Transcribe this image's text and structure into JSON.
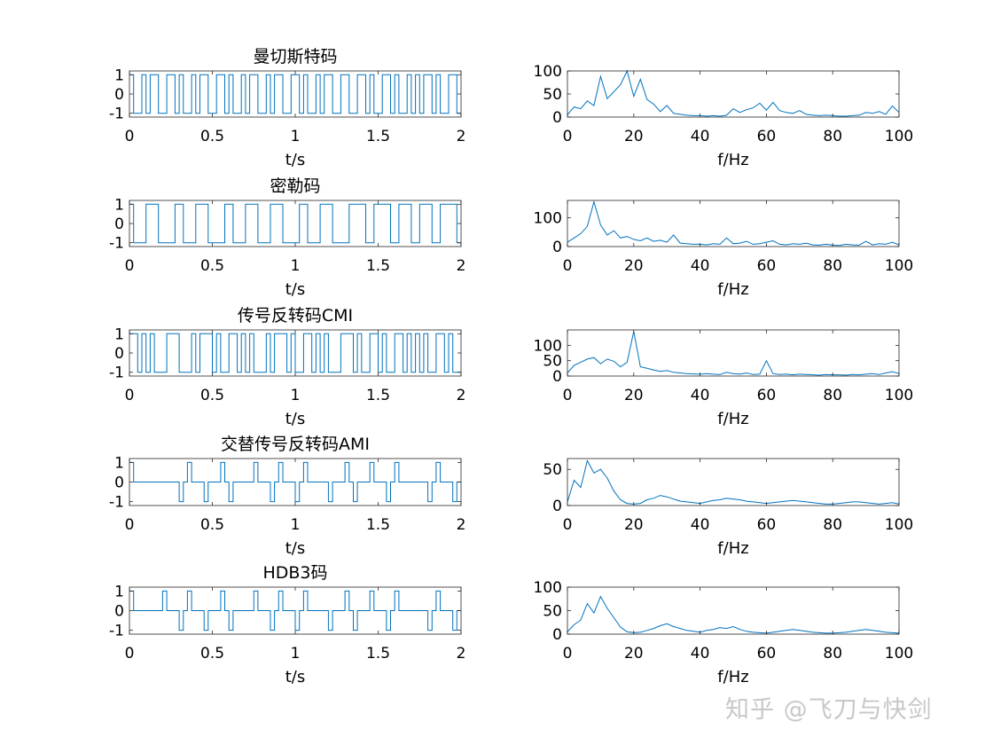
{
  "watermark": "知乎 @飞刀与快剑",
  "colors": {
    "line": "#0072BD",
    "axis": "#262626",
    "text": "#000000"
  },
  "chart_data": [
    {
      "type": "line",
      "title": "曼切斯特码",
      "xlabel": "t/s",
      "ylabel": "",
      "xlim": [
        0,
        2
      ],
      "ylim": [
        -1.2,
        1.2
      ],
      "xticks": [
        0,
        0.5,
        1,
        1.5,
        2
      ],
      "xticklabels": [
        "0",
        "0.5",
        "1",
        "1.5",
        "2"
      ],
      "yticks": [
        -1,
        0,
        1
      ],
      "yticklabels": [
        "-1",
        "0",
        "1"
      ],
      "coding": "manchester",
      "bits": [
        1,
        0,
        0,
        1,
        0,
        1,
        1,
        0,
        0,
        1,
        0,
        1,
        1,
        0,
        0,
        1,
        0,
        0,
        1,
        0,
        1,
        1,
        0,
        0,
        1,
        0,
        1,
        0,
        1,
        1,
        0,
        1,
        1,
        0,
        0,
        0,
        1,
        1,
        0,
        1
      ]
    },
    {
      "type": "line",
      "title": "",
      "xlabel": "f/Hz",
      "ylabel": "",
      "xlim": [
        0,
        100
      ],
      "ylim": [
        0,
        100
      ],
      "xticks": [
        0,
        20,
        40,
        60,
        80,
        100
      ],
      "xticklabels": [
        "0",
        "20",
        "40",
        "60",
        "80",
        "100"
      ],
      "yticks": [
        0,
        50,
        100
      ],
      "yticklabels": [
        "0",
        "50",
        "100"
      ],
      "x": [
        0,
        2,
        4,
        6,
        8,
        10,
        12,
        14,
        16,
        18,
        20,
        22,
        24,
        26,
        28,
        30,
        32,
        34,
        36,
        38,
        40,
        42,
        44,
        46,
        48,
        50,
        52,
        54,
        56,
        58,
        60,
        62,
        64,
        66,
        68,
        70,
        72,
        74,
        76,
        78,
        80,
        82,
        84,
        86,
        88,
        90,
        92,
        94,
        96,
        98,
        100
      ],
      "y": [
        5,
        22,
        18,
        35,
        25,
        88,
        40,
        55,
        70,
        100,
        45,
        82,
        38,
        28,
        12,
        25,
        8,
        6,
        4,
        3,
        3,
        2,
        3,
        2,
        4,
        18,
        10,
        16,
        20,
        30,
        15,
        32,
        14,
        10,
        8,
        14,
        6,
        4,
        3,
        4,
        3,
        2,
        2,
        3,
        4,
        10,
        8,
        12,
        6,
        24,
        10
      ]
    },
    {
      "type": "line",
      "title": "密勒码",
      "xlabel": "t/s",
      "ylabel": "",
      "xlim": [
        0,
        2
      ],
      "ylim": [
        -1.2,
        1.2
      ],
      "xticks": [
        0,
        0.5,
        1,
        1.5,
        2
      ],
      "xticklabels": [
        "0",
        "0.5",
        "1",
        "1.5",
        "2"
      ],
      "yticks": [
        -1,
        0,
        1
      ],
      "yticklabels": [
        "-1",
        "0",
        "1"
      ],
      "coding": "miller",
      "bits": [
        1,
        0,
        0,
        1,
        0,
        1,
        1,
        0,
        0,
        1,
        0,
        1,
        1,
        0,
        0,
        1,
        0,
        0,
        1,
        0,
        1,
        1,
        0,
        0,
        1,
        0,
        1,
        0,
        1,
        1,
        0,
        1,
        1,
        0,
        0,
        0,
        1,
        1,
        0,
        1
      ]
    },
    {
      "type": "line",
      "title": "",
      "xlabel": "f/Hz",
      "ylabel": "",
      "xlim": [
        0,
        100
      ],
      "ylim": [
        0,
        160
      ],
      "xticks": [
        0,
        20,
        40,
        60,
        80,
        100
      ],
      "xticklabels": [
        "0",
        "20",
        "40",
        "60",
        "80",
        "100"
      ],
      "yticks": [
        0,
        100
      ],
      "yticklabels": [
        "0",
        "100"
      ],
      "x": [
        0,
        2,
        4,
        6,
        8,
        10,
        12,
        14,
        16,
        18,
        20,
        22,
        24,
        26,
        28,
        30,
        32,
        34,
        36,
        38,
        40,
        42,
        44,
        46,
        48,
        50,
        52,
        54,
        56,
        58,
        60,
        62,
        64,
        66,
        68,
        70,
        72,
        74,
        76,
        78,
        80,
        82,
        84,
        86,
        88,
        90,
        92,
        94,
        96,
        98,
        100
      ],
      "y": [
        15,
        30,
        45,
        70,
        155,
        75,
        40,
        55,
        30,
        35,
        25,
        20,
        30,
        18,
        22,
        15,
        40,
        12,
        10,
        8,
        8,
        6,
        10,
        8,
        30,
        10,
        12,
        18,
        8,
        10,
        15,
        20,
        8,
        6,
        10,
        8,
        12,
        6,
        5,
        8,
        5,
        4,
        8,
        6,
        5,
        18,
        6,
        10,
        8,
        15,
        6
      ]
    },
    {
      "type": "line",
      "title": "传号反转码CMI",
      "xlabel": "t/s",
      "ylabel": "",
      "xlim": [
        0,
        2
      ],
      "ylim": [
        -1.2,
        1.2
      ],
      "xticks": [
        0,
        0.5,
        1,
        1.5,
        2
      ],
      "xticklabels": [
        "0",
        "0.5",
        "1",
        "1.5",
        "2"
      ],
      "yticks": [
        -1,
        0,
        1
      ],
      "yticklabels": [
        "-1",
        "0",
        "1"
      ],
      "coding": "cmi",
      "bits": [
        1,
        0,
        0,
        1,
        0,
        1,
        1,
        0,
        0,
        1,
        0,
        1,
        1,
        0,
        0,
        1,
        0,
        0,
        1,
        0,
        1,
        1,
        0,
        0,
        1,
        0,
        1,
        0,
        1,
        1,
        0,
        1,
        1,
        0,
        0,
        0,
        1,
        1,
        0,
        1
      ]
    },
    {
      "type": "line",
      "title": "",
      "xlabel": "f/Hz",
      "ylabel": "",
      "xlim": [
        0,
        100
      ],
      "ylim": [
        0,
        150
      ],
      "xticks": [
        0,
        20,
        40,
        60,
        80,
        100
      ],
      "xticklabels": [
        "0",
        "20",
        "40",
        "60",
        "80",
        "100"
      ],
      "yticks": [
        0,
        50,
        100
      ],
      "yticklabels": [
        "0",
        "50",
        "100"
      ],
      "x": [
        0,
        2,
        4,
        6,
        8,
        10,
        12,
        14,
        16,
        18,
        20,
        22,
        24,
        26,
        28,
        30,
        32,
        34,
        36,
        38,
        40,
        42,
        44,
        46,
        48,
        50,
        52,
        54,
        56,
        58,
        60,
        62,
        64,
        66,
        68,
        70,
        72,
        74,
        76,
        78,
        80,
        82,
        84,
        86,
        88,
        90,
        92,
        94,
        96,
        98,
        100
      ],
      "y": [
        10,
        35,
        45,
        55,
        60,
        40,
        55,
        48,
        30,
        45,
        145,
        30,
        25,
        20,
        15,
        18,
        12,
        10,
        8,
        7,
        6,
        8,
        6,
        5,
        12,
        8,
        6,
        10,
        5,
        6,
        50,
        8,
        5,
        6,
        4,
        6,
        5,
        4,
        3,
        5,
        4,
        4,
        3,
        5,
        4,
        6,
        8,
        5,
        10,
        14,
        8
      ]
    },
    {
      "type": "line",
      "title": "交替传号反转码AMI",
      "xlabel": "t/s",
      "ylabel": "",
      "xlim": [
        0,
        2
      ],
      "ylim": [
        -1.2,
        1.2
      ],
      "xticks": [
        0,
        0.5,
        1,
        1.5,
        2
      ],
      "xticklabels": [
        "0",
        "0.5",
        "1",
        "1.5",
        "2"
      ],
      "yticks": [
        -1,
        0,
        1
      ],
      "yticklabels": [
        "-1",
        "0",
        "1"
      ],
      "coding": "ami",
      "bits": [
        1,
        0,
        0,
        0,
        0,
        0,
        1,
        1,
        0,
        1,
        0,
        1,
        1,
        0,
        0,
        1,
        0,
        1,
        1,
        0,
        1,
        1,
        0,
        0,
        1,
        0,
        1,
        1,
        0,
        1,
        0,
        1,
        1,
        0,
        0,
        0,
        1,
        1,
        0,
        1
      ]
    },
    {
      "type": "line",
      "title": "",
      "xlabel": "f/Hz",
      "ylabel": "",
      "xlim": [
        0,
        100
      ],
      "ylim": [
        0,
        65
      ],
      "xticks": [
        0,
        20,
        40,
        60,
        80,
        100
      ],
      "xticklabels": [
        "0",
        "20",
        "40",
        "60",
        "80",
        "100"
      ],
      "yticks": [
        0,
        50
      ],
      "yticklabels": [
        "0",
        "50"
      ],
      "x": [
        0,
        2,
        4,
        6,
        8,
        10,
        12,
        14,
        16,
        18,
        20,
        22,
        24,
        26,
        28,
        30,
        32,
        34,
        36,
        38,
        40,
        42,
        44,
        46,
        48,
        50,
        52,
        54,
        56,
        58,
        60,
        62,
        64,
        66,
        68,
        70,
        72,
        74,
        76,
        78,
        80,
        82,
        84,
        86,
        88,
        90,
        92,
        94,
        96,
        98,
        100
      ],
      "y": [
        5,
        35,
        25,
        62,
        45,
        50,
        38,
        20,
        8,
        3,
        2,
        3,
        8,
        10,
        14,
        12,
        9,
        6,
        5,
        4,
        3,
        5,
        7,
        8,
        10,
        9,
        8,
        6,
        5,
        4,
        3,
        4,
        5,
        6,
        7,
        6,
        5,
        4,
        3,
        2,
        2,
        3,
        4,
        5,
        5,
        4,
        3,
        2,
        3,
        4,
        2
      ]
    },
    {
      "type": "line",
      "title": "HDB3码",
      "xlabel": "t/s",
      "ylabel": "",
      "xlim": [
        0,
        2
      ],
      "ylim": [
        -1.2,
        1.2
      ],
      "xticks": [
        0,
        0.5,
        1,
        1.5,
        2
      ],
      "xticklabels": [
        "0",
        "0.5",
        "1",
        "1.5",
        "2"
      ],
      "yticks": [
        -1,
        0,
        1
      ],
      "yticklabels": [
        "-1",
        "0",
        "1"
      ],
      "coding": "hdb3",
      "bits": [
        1,
        0,
        0,
        0,
        0,
        0,
        1,
        1,
        0,
        1,
        0,
        1,
        1,
        0,
        0,
        1,
        0,
        1,
        1,
        0,
        1,
        1,
        0,
        0,
        1,
        0,
        1,
        1,
        0,
        1,
        0,
        1,
        1,
        0,
        0,
        0,
        1,
        1,
        0,
        1
      ]
    },
    {
      "type": "line",
      "title": "",
      "xlabel": "f/Hz",
      "ylabel": "",
      "xlim": [
        0,
        100
      ],
      "ylim": [
        0,
        100
      ],
      "xticks": [
        0,
        20,
        40,
        60,
        80,
        100
      ],
      "xticklabels": [
        "0",
        "20",
        "40",
        "60",
        "80",
        "100"
      ],
      "yticks": [
        0,
        50,
        100
      ],
      "yticklabels": [
        "0",
        "50",
        "100"
      ],
      "x": [
        0,
        2,
        4,
        6,
        8,
        10,
        12,
        14,
        16,
        18,
        20,
        22,
        24,
        26,
        28,
        30,
        32,
        34,
        36,
        38,
        40,
        42,
        44,
        46,
        48,
        50,
        52,
        54,
        56,
        58,
        60,
        62,
        64,
        66,
        68,
        70,
        72,
        74,
        76,
        78,
        80,
        82,
        84,
        86,
        88,
        90,
        92,
        94,
        96,
        98,
        100
      ],
      "y": [
        5,
        20,
        30,
        65,
        45,
        80,
        55,
        35,
        15,
        5,
        3,
        4,
        8,
        12,
        18,
        22,
        16,
        12,
        8,
        6,
        4,
        8,
        10,
        14,
        12,
        16,
        10,
        6,
        4,
        3,
        2,
        4,
        6,
        8,
        10,
        8,
        6,
        4,
        3,
        2,
        2,
        3,
        4,
        6,
        8,
        10,
        8,
        6,
        4,
        3,
        2
      ]
    }
  ]
}
